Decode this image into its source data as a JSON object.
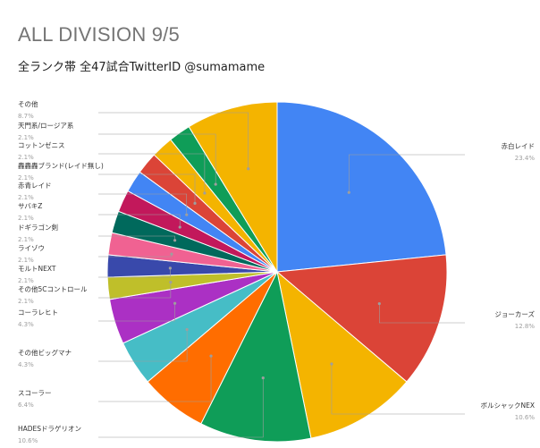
{
  "chart_data": {
    "type": "pie",
    "title": "ALL DIVISION 9/5",
    "subtitle": "全ランク帯 全47試合TwitterID @sumamame",
    "slices": [
      {
        "label": "赤白レイド",
        "pct_label": "23.4%",
        "value": 23.4,
        "color": "#4285f4"
      },
      {
        "label": "ジョーカーズ",
        "pct_label": "12.8%",
        "value": 12.8,
        "color": "#db4437"
      },
      {
        "label": "ボルシャックNEX",
        "pct_label": "10.6%",
        "value": 10.6,
        "color": "#f4b400"
      },
      {
        "label": "HADESドラゲリオン",
        "pct_label": "10.6%",
        "value": 10.6,
        "color": "#0f9d58"
      },
      {
        "label": "スコーラー",
        "pct_label": "6.4%",
        "value": 6.4,
        "color": "#ff6d00"
      },
      {
        "label": "その他ビッグマナ",
        "pct_label": "4.3%",
        "value": 4.3,
        "color": "#46bdc6"
      },
      {
        "label": "コーラレヒト",
        "pct_label": "4.3%",
        "value": 4.3,
        "color": "#ab30c4"
      },
      {
        "label": "その他5Cコントロール",
        "pct_label": "2.1%",
        "value": 2.1,
        "color": "#bfbf2a"
      },
      {
        "label": "モルトNEXT",
        "pct_label": "2.1%",
        "value": 2.1,
        "color": "#3949ab"
      },
      {
        "label": "ライゾウ",
        "pct_label": "2.1%",
        "value": 2.1,
        "color": "#f06292"
      },
      {
        "label": "ドギラゴン剣",
        "pct_label": "2.1%",
        "value": 2.1,
        "color": "#00695c"
      },
      {
        "label": "サバキZ",
        "pct_label": "2.1%",
        "value": 2.1,
        "color": "#c2185b"
      },
      {
        "label": "赤青レイド",
        "pct_label": "2.1%",
        "value": 2.1,
        "color": "#4285f4"
      },
      {
        "label": "轟轟轟ブランド(レイド無し)",
        "pct_label": "2.1%",
        "value": 2.1,
        "color": "#db4437"
      },
      {
        "label": "コットンゼニス",
        "pct_label": "2.1%",
        "value": 2.1,
        "color": "#f4b400"
      },
      {
        "label": "天門系/ロージア系",
        "pct_label": "2.1%",
        "value": 2.1,
        "color": "#0f9d58"
      },
      {
        "label": "その他",
        "pct_label": "8.7%",
        "value": 8.7,
        "color": "#f4b400"
      }
    ]
  }
}
